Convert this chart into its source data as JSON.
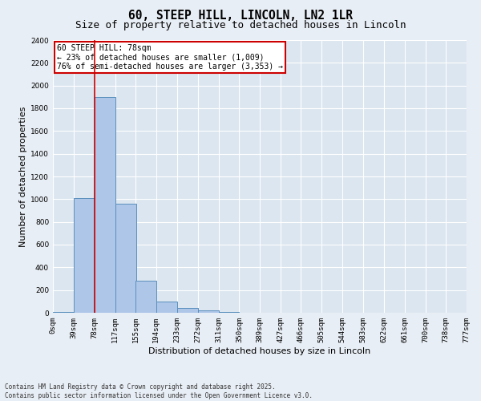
{
  "title": "60, STEEP HILL, LINCOLN, LN2 1LR",
  "subtitle": "Size of property relative to detached houses in Lincoln",
  "xlabel": "Distribution of detached houses by size in Lincoln",
  "ylabel": "Number of detached properties",
  "bins": [
    0,
    39,
    78,
    117,
    155,
    194,
    233,
    272,
    311,
    350,
    389,
    427,
    466,
    505,
    544,
    583,
    622,
    661,
    700,
    738,
    777
  ],
  "bin_labels": [
    "0sqm",
    "39sqm",
    "78sqm",
    "117sqm",
    "155sqm",
    "194sqm",
    "233sqm",
    "272sqm",
    "311sqm",
    "350sqm",
    "389sqm",
    "427sqm",
    "466sqm",
    "505sqm",
    "544sqm",
    "583sqm",
    "622sqm",
    "661sqm",
    "700sqm",
    "738sqm",
    "777sqm"
  ],
  "bar_heights": [
    5,
    1010,
    1900,
    960,
    285,
    100,
    40,
    20,
    5,
    2,
    2,
    1,
    1,
    0,
    0,
    0,
    0,
    0,
    0,
    0
  ],
  "bar_color": "#aec6e8",
  "bar_edge_color": "#5a8fbd",
  "red_line_x": 78,
  "ylim": [
    0,
    2400
  ],
  "yticks": [
    0,
    200,
    400,
    600,
    800,
    1000,
    1200,
    1400,
    1600,
    1800,
    2000,
    2200,
    2400
  ],
  "annotation_text": "60 STEEP HILL: 78sqm\n← 23% of detached houses are smaller (1,009)\n76% of semi-detached houses are larger (3,353) →",
  "annotation_box_color": "#ffffff",
  "annotation_box_edge": "#cc0000",
  "bg_color": "#e8eef5",
  "plot_bg_color": "#dce6f0",
  "grid_color": "#ffffff",
  "footer_text": "Contains HM Land Registry data © Crown copyright and database right 2025.\nContains public sector information licensed under the Open Government Licence v3.0.",
  "title_fontsize": 10.5,
  "subtitle_fontsize": 9,
  "axis_label_fontsize": 8,
  "tick_fontsize": 6.5,
  "annotation_fontsize": 7,
  "footer_fontsize": 5.5
}
